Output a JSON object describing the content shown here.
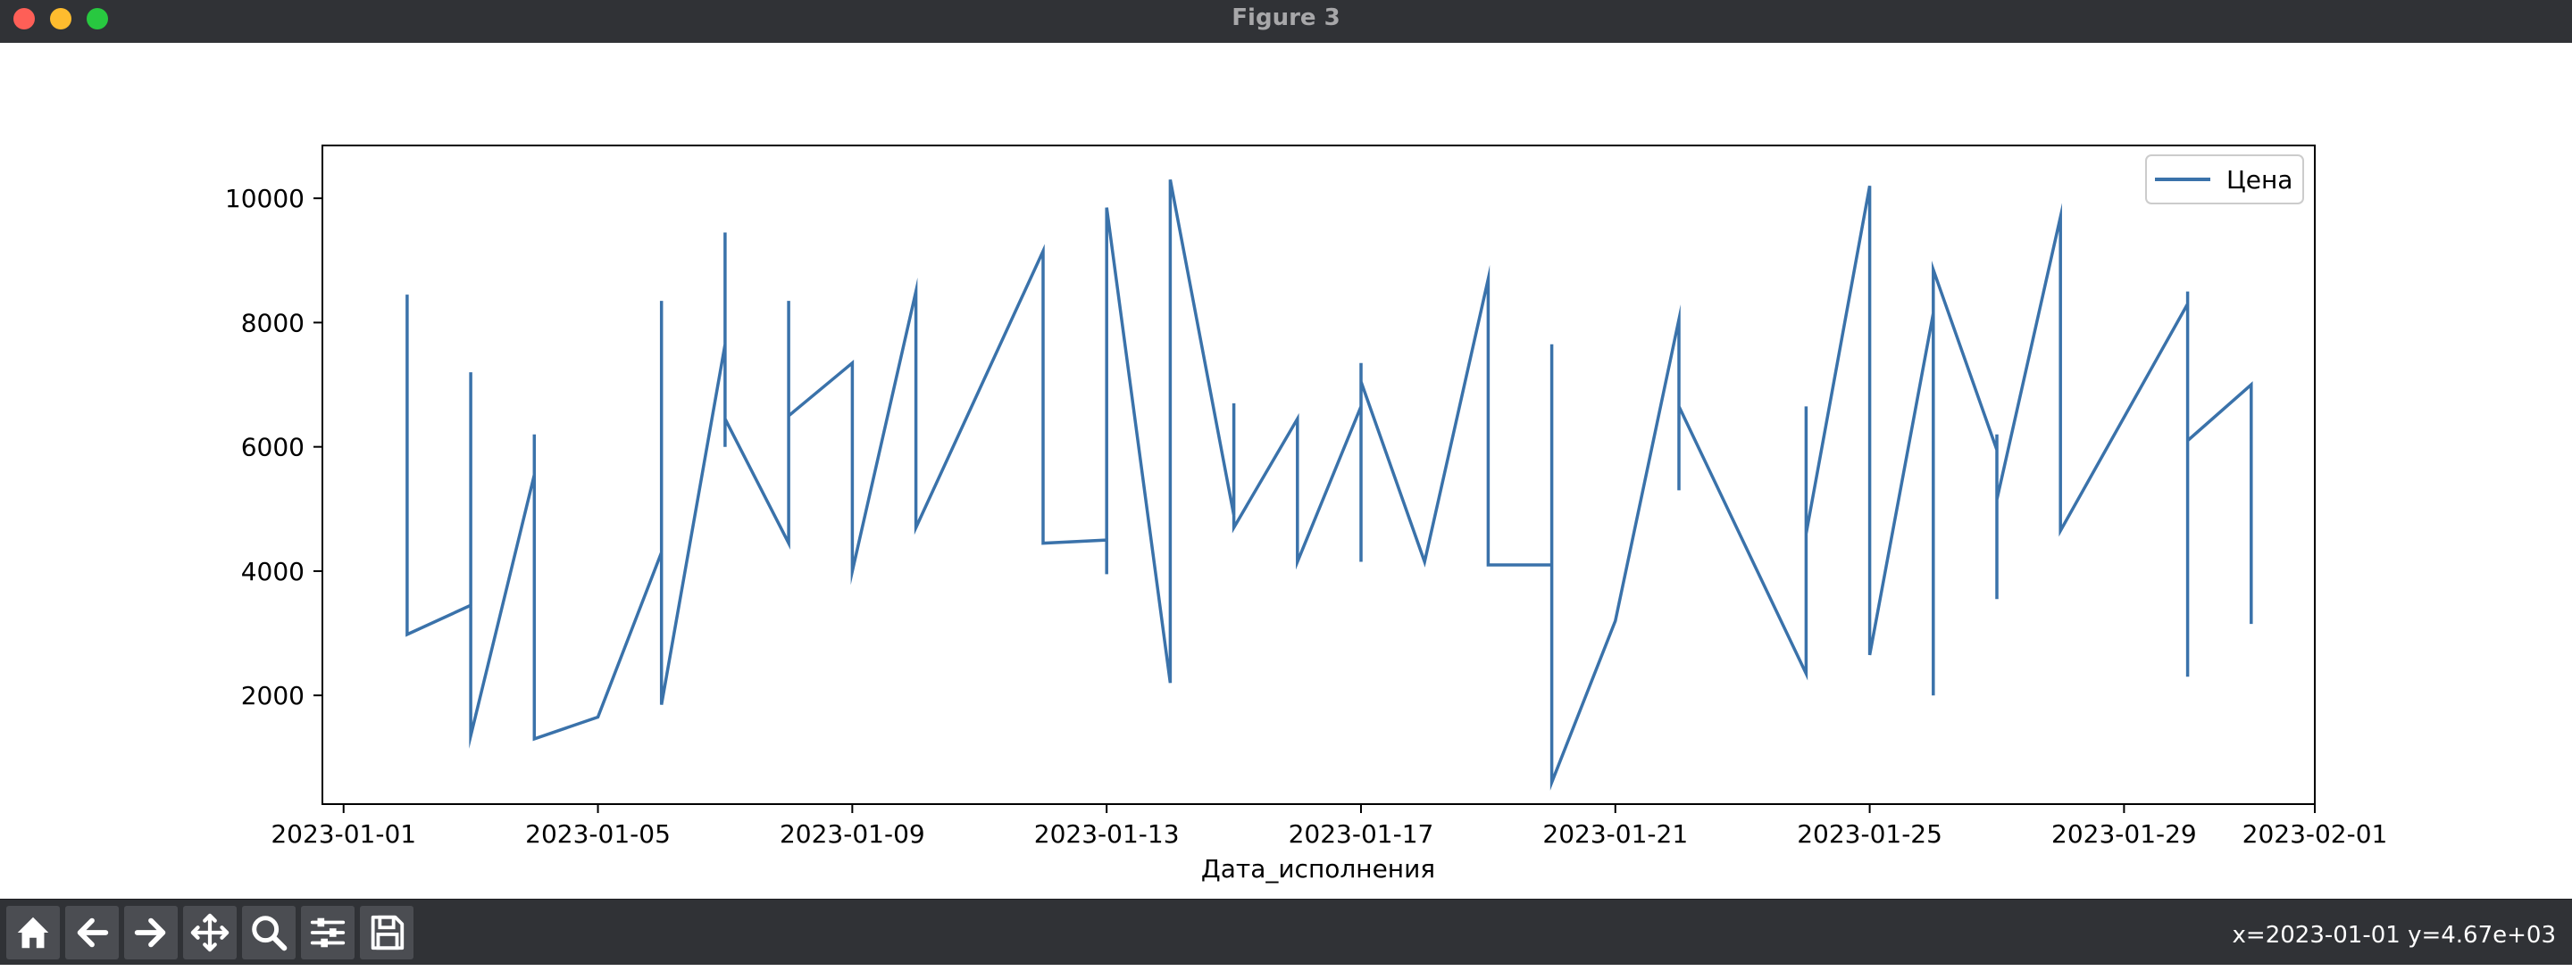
{
  "window": {
    "title": "Figure 3"
  },
  "toolbar": {
    "tools": [
      {
        "name": "home",
        "icon": "home-icon"
      },
      {
        "name": "back",
        "icon": "arrow-left-icon"
      },
      {
        "name": "forward",
        "icon": "arrow-right-icon"
      },
      {
        "name": "pan",
        "icon": "move-icon"
      },
      {
        "name": "zoom",
        "icon": "zoom-icon"
      },
      {
        "name": "configure",
        "icon": "sliders-icon"
      },
      {
        "name": "save",
        "icon": "save-icon"
      }
    ],
    "coords_readout": "x=2023-01-01 y=4.67e+03"
  },
  "chart_data": {
    "type": "line",
    "title": "",
    "xlabel": "Дата_исполнения",
    "ylabel": "",
    "xlim": [
      "2022-12-31T16:00",
      "2023-02-01T00:00"
    ],
    "ylim": [
      250,
      10850
    ],
    "x_ticks": [
      "2023-01-01",
      "2023-01-05",
      "2023-01-09",
      "2023-01-13",
      "2023-01-17",
      "2023-01-21",
      "2023-01-25",
      "2023-01-29",
      "2023-02-01"
    ],
    "y_ticks": [
      2000,
      4000,
      6000,
      8000,
      10000
    ],
    "grid": false,
    "legend": {
      "position": "top-right"
    },
    "colors": {
      "line": "#3a72aa",
      "frame": "#000000"
    },
    "series": [
      {
        "name": "Цена",
        "points": [
          [
            "2023-01-02",
            8450
          ],
          [
            "2023-01-02",
            7000
          ],
          [
            "2023-01-02",
            5150
          ],
          [
            "2023-01-02",
            6950
          ],
          [
            "2023-01-02",
            2980
          ],
          [
            "2023-01-03",
            3450
          ],
          [
            "2023-01-03",
            7200
          ],
          [
            "2023-01-03",
            1350
          ],
          [
            "2023-01-04",
            5550
          ],
          [
            "2023-01-04",
            6200
          ],
          [
            "2023-01-04",
            3750
          ],
          [
            "2023-01-04",
            1300
          ],
          [
            "2023-01-05",
            1650
          ],
          [
            "2023-01-06",
            4300
          ],
          [
            "2023-01-06",
            8350
          ],
          [
            "2023-01-06",
            1850
          ],
          [
            "2023-01-07",
            7650
          ],
          [
            "2023-01-07",
            9450
          ],
          [
            "2023-01-07",
            6000
          ],
          [
            "2023-01-07",
            6450
          ],
          [
            "2023-01-08",
            4450
          ],
          [
            "2023-01-08",
            8350
          ],
          [
            "2023-01-08",
            5150
          ],
          [
            "2023-01-08",
            6500
          ],
          [
            "2023-01-09",
            7350
          ],
          [
            "2023-01-09",
            4000
          ],
          [
            "2023-01-10",
            8500
          ],
          [
            "2023-01-10",
            4700
          ],
          [
            "2023-01-12",
            9150
          ],
          [
            "2023-01-12",
            4450
          ],
          [
            "2023-01-13",
            4500
          ],
          [
            "2023-01-13",
            3950
          ],
          [
            "2023-01-13",
            9850
          ],
          [
            "2023-01-14",
            2200
          ],
          [
            "2023-01-14",
            10300
          ],
          [
            "2023-01-15",
            4900
          ],
          [
            "2023-01-15",
            6700
          ],
          [
            "2023-01-15",
            4700
          ],
          [
            "2023-01-16",
            6450
          ],
          [
            "2023-01-16",
            4150
          ],
          [
            "2023-01-17",
            6650
          ],
          [
            "2023-01-17",
            4150
          ],
          [
            "2023-01-17",
            7350
          ],
          [
            "2023-01-17",
            7050
          ],
          [
            "2023-01-18",
            4150
          ],
          [
            "2023-01-19",
            8700
          ],
          [
            "2023-01-19",
            4100
          ],
          [
            "2023-01-20",
            4100
          ],
          [
            "2023-01-20",
            3450
          ],
          [
            "2023-01-20",
            7650
          ],
          [
            "2023-01-20",
            600
          ],
          [
            "2023-01-21",
            3200
          ],
          [
            "2023-01-22",
            8050
          ],
          [
            "2023-01-22",
            5300
          ],
          [
            "2023-01-22",
            6650
          ],
          [
            "2023-01-24",
            2350
          ],
          [
            "2023-01-24",
            6650
          ],
          [
            "2023-01-24",
            4600
          ],
          [
            "2023-01-25",
            10200
          ],
          [
            "2023-01-25",
            2650
          ],
          [
            "2023-01-26",
            8150
          ],
          [
            "2023-01-26",
            2000
          ],
          [
            "2023-01-26",
            8850
          ],
          [
            "2023-01-27",
            5950
          ],
          [
            "2023-01-27",
            3550
          ],
          [
            "2023-01-27",
            6200
          ],
          [
            "2023-01-27",
            5150
          ],
          [
            "2023-01-28",
            9700
          ],
          [
            "2023-01-28",
            4650
          ],
          [
            "2023-01-30",
            8300
          ],
          [
            "2023-01-30",
            2300
          ],
          [
            "2023-01-30",
            8500
          ],
          [
            "2023-01-30",
            6100
          ],
          [
            "2023-01-31",
            7000
          ],
          [
            "2023-01-31",
            3150
          ]
        ]
      }
    ]
  }
}
